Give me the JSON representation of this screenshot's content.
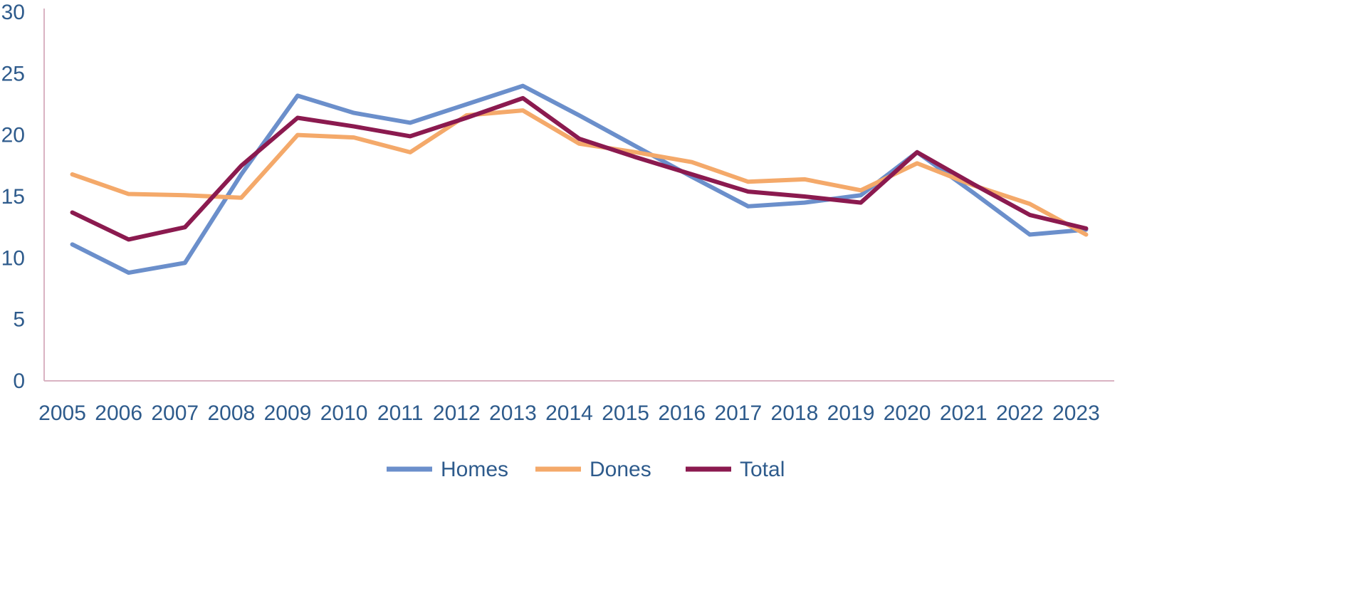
{
  "chart_data": {
    "type": "line",
    "title": "",
    "xlabel": "",
    "ylabel": "",
    "ylim": [
      0,
      30
    ],
    "yticks": [
      "0",
      "5",
      "10",
      "15",
      "20",
      "25",
      "30"
    ],
    "grid": false,
    "legend_position": "bottom",
    "categories": [
      "2005",
      "2006",
      "2007",
      "2008",
      "2009",
      "2010",
      "2011",
      "2012",
      "2013",
      "2014",
      "2015",
      "2016",
      "2017",
      "2018",
      "2019",
      "2020",
      "2021",
      "2022",
      "2023"
    ],
    "series": [
      {
        "name": "Homes",
        "color": "#6b8fcb",
        "values": [
          11.1,
          8.8,
          9.6,
          16.8,
          23.2,
          21.8,
          21.0,
          22.5,
          24.0,
          21.6,
          19.1,
          16.6,
          14.2,
          14.5,
          15.1,
          18.6,
          15.3,
          11.9,
          12.3
        ]
      },
      {
        "name": "Dones",
        "color": "#f4a96a",
        "values": [
          16.8,
          15.2,
          15.1,
          14.9,
          20.0,
          19.8,
          18.6,
          21.6,
          22.0,
          19.3,
          18.6,
          17.8,
          16.2,
          16.4,
          15.5,
          17.7,
          15.9,
          14.4,
          11.9
        ]
      },
      {
        "name": "Total",
        "color": "#8b1a4f",
        "values": [
          13.7,
          11.5,
          12.5,
          17.5,
          21.4,
          20.7,
          19.9,
          21.4,
          23.0,
          19.7,
          18.2,
          16.8,
          15.4,
          15.0,
          14.5,
          18.6,
          16.0,
          13.5,
          12.4
        ]
      }
    ]
  }
}
